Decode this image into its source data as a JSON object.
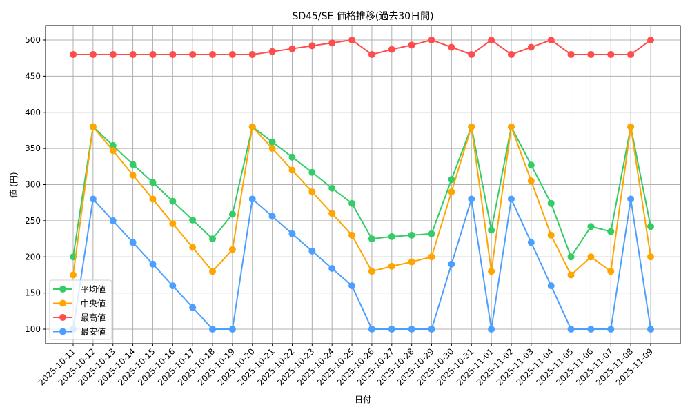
{
  "chart_data": {
    "type": "line",
    "title": "SD45/SE 価格推移(過去30日間)",
    "xlabel": "日付",
    "ylabel": "値 (円)",
    "ylim": [
      80,
      520
    ],
    "yticks": [
      100,
      150,
      200,
      250,
      300,
      350,
      400,
      450,
      500
    ],
    "grid": true,
    "legend_position": "lower left",
    "categories": [
      "2025-10-11",
      "2025-10-12",
      "2025-10-13",
      "2025-10-14",
      "2025-10-15",
      "2025-10-16",
      "2025-10-17",
      "2025-10-18",
      "2025-10-19",
      "2025-10-20",
      "2025-10-21",
      "2025-10-22",
      "2025-10-23",
      "2025-10-24",
      "2025-10-25",
      "2025-10-26",
      "2025-10-27",
      "2025-10-28",
      "2025-10-29",
      "2025-10-30",
      "2025-10-31",
      "2025-11-01",
      "2025-11-02",
      "2025-11-03",
      "2025-11-04",
      "2025-11-05",
      "2025-11-06",
      "2025-11-07",
      "2025-11-08",
      "2025-11-09"
    ],
    "series": [
      {
        "name": "平均値",
        "color": "#33cc66",
        "values": [
          200,
          380,
          354,
          328,
          303,
          277,
          251,
          225,
          259,
          380,
          359,
          338,
          317,
          295,
          274,
          225,
          228,
          230,
          232,
          307,
          380,
          237,
          380,
          327,
          274,
          200,
          242,
          235,
          380,
          242
        ]
      },
      {
        "name": "中央値",
        "color": "#ffa500",
        "values": [
          175,
          380,
          347,
          313,
          280,
          246,
          213,
          180,
          210,
          380,
          350,
          320,
          290,
          260,
          230,
          180,
          187,
          193,
          200,
          290,
          380,
          180,
          380,
          305,
          230,
          175,
          200,
          180,
          380,
          200
        ]
      },
      {
        "name": "最高値",
        "color": "#ff4d4d",
        "values": [
          480,
          480,
          480,
          480,
          480,
          480,
          480,
          480,
          480,
          480,
          484,
          488,
          492,
          496,
          500,
          480,
          487,
          493,
          500,
          490,
          480,
          500,
          480,
          490,
          500,
          480,
          480,
          480,
          480,
          500
        ]
      },
      {
        "name": "最安値",
        "color": "#4d9fff",
        "values": [
          100,
          280,
          250,
          220,
          190,
          160,
          130,
          100,
          100,
          280,
          256,
          232,
          208,
          184,
          160,
          100,
          100,
          100,
          100,
          190,
          280,
          100,
          280,
          220,
          160,
          100,
          100,
          100,
          280,
          100
        ]
      }
    ]
  }
}
